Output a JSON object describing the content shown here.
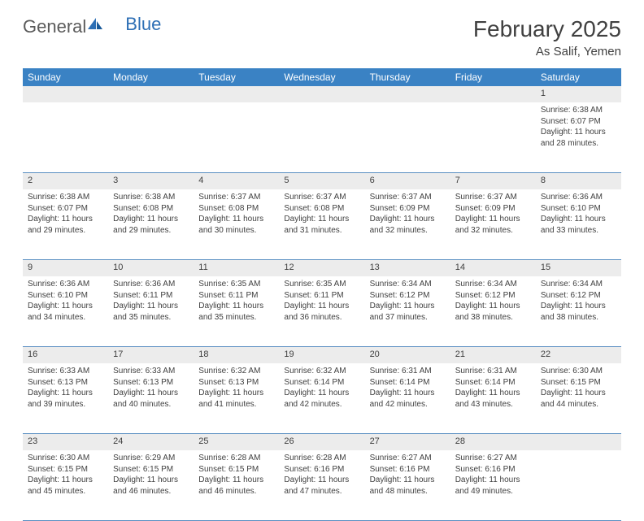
{
  "logo": {
    "text1": "General",
    "text2": "Blue"
  },
  "title": "February 2025",
  "location": "As Salif, Yemen",
  "weekdays": [
    "Sunday",
    "Monday",
    "Tuesday",
    "Wednesday",
    "Thursday",
    "Friday",
    "Saturday"
  ],
  "colors": {
    "header_bg": "#3a82c4",
    "header_text": "#ffffff",
    "daynum_bg": "#ececec",
    "border": "#5a8fc2",
    "text": "#404040",
    "logo_gray": "#5a5a5a",
    "logo_blue": "#2d6fb5"
  },
  "weeks": [
    {
      "nums": [
        "",
        "",
        "",
        "",
        "",
        "",
        "1"
      ],
      "cells": [
        null,
        null,
        null,
        null,
        null,
        null,
        {
          "sunrise": "Sunrise: 6:38 AM",
          "sunset": "Sunset: 6:07 PM",
          "daylight": "Daylight: 11 hours and 28 minutes."
        }
      ]
    },
    {
      "nums": [
        "2",
        "3",
        "4",
        "5",
        "6",
        "7",
        "8"
      ],
      "cells": [
        {
          "sunrise": "Sunrise: 6:38 AM",
          "sunset": "Sunset: 6:07 PM",
          "daylight": "Daylight: 11 hours and 29 minutes."
        },
        {
          "sunrise": "Sunrise: 6:38 AM",
          "sunset": "Sunset: 6:08 PM",
          "daylight": "Daylight: 11 hours and 29 minutes."
        },
        {
          "sunrise": "Sunrise: 6:37 AM",
          "sunset": "Sunset: 6:08 PM",
          "daylight": "Daylight: 11 hours and 30 minutes."
        },
        {
          "sunrise": "Sunrise: 6:37 AM",
          "sunset": "Sunset: 6:08 PM",
          "daylight": "Daylight: 11 hours and 31 minutes."
        },
        {
          "sunrise": "Sunrise: 6:37 AM",
          "sunset": "Sunset: 6:09 PM",
          "daylight": "Daylight: 11 hours and 32 minutes."
        },
        {
          "sunrise": "Sunrise: 6:37 AM",
          "sunset": "Sunset: 6:09 PM",
          "daylight": "Daylight: 11 hours and 32 minutes."
        },
        {
          "sunrise": "Sunrise: 6:36 AM",
          "sunset": "Sunset: 6:10 PM",
          "daylight": "Daylight: 11 hours and 33 minutes."
        }
      ]
    },
    {
      "nums": [
        "9",
        "10",
        "11",
        "12",
        "13",
        "14",
        "15"
      ],
      "cells": [
        {
          "sunrise": "Sunrise: 6:36 AM",
          "sunset": "Sunset: 6:10 PM",
          "daylight": "Daylight: 11 hours and 34 minutes."
        },
        {
          "sunrise": "Sunrise: 6:36 AM",
          "sunset": "Sunset: 6:11 PM",
          "daylight": "Daylight: 11 hours and 35 minutes."
        },
        {
          "sunrise": "Sunrise: 6:35 AM",
          "sunset": "Sunset: 6:11 PM",
          "daylight": "Daylight: 11 hours and 35 minutes."
        },
        {
          "sunrise": "Sunrise: 6:35 AM",
          "sunset": "Sunset: 6:11 PM",
          "daylight": "Daylight: 11 hours and 36 minutes."
        },
        {
          "sunrise": "Sunrise: 6:34 AM",
          "sunset": "Sunset: 6:12 PM",
          "daylight": "Daylight: 11 hours and 37 minutes."
        },
        {
          "sunrise": "Sunrise: 6:34 AM",
          "sunset": "Sunset: 6:12 PM",
          "daylight": "Daylight: 11 hours and 38 minutes."
        },
        {
          "sunrise": "Sunrise: 6:34 AM",
          "sunset": "Sunset: 6:12 PM",
          "daylight": "Daylight: 11 hours and 38 minutes."
        }
      ]
    },
    {
      "nums": [
        "16",
        "17",
        "18",
        "19",
        "20",
        "21",
        "22"
      ],
      "cells": [
        {
          "sunrise": "Sunrise: 6:33 AM",
          "sunset": "Sunset: 6:13 PM",
          "daylight": "Daylight: 11 hours and 39 minutes."
        },
        {
          "sunrise": "Sunrise: 6:33 AM",
          "sunset": "Sunset: 6:13 PM",
          "daylight": "Daylight: 11 hours and 40 minutes."
        },
        {
          "sunrise": "Sunrise: 6:32 AM",
          "sunset": "Sunset: 6:13 PM",
          "daylight": "Daylight: 11 hours and 41 minutes."
        },
        {
          "sunrise": "Sunrise: 6:32 AM",
          "sunset": "Sunset: 6:14 PM",
          "daylight": "Daylight: 11 hours and 42 minutes."
        },
        {
          "sunrise": "Sunrise: 6:31 AM",
          "sunset": "Sunset: 6:14 PM",
          "daylight": "Daylight: 11 hours and 42 minutes."
        },
        {
          "sunrise": "Sunrise: 6:31 AM",
          "sunset": "Sunset: 6:14 PM",
          "daylight": "Daylight: 11 hours and 43 minutes."
        },
        {
          "sunrise": "Sunrise: 6:30 AM",
          "sunset": "Sunset: 6:15 PM",
          "daylight": "Daylight: 11 hours and 44 minutes."
        }
      ]
    },
    {
      "nums": [
        "23",
        "24",
        "25",
        "26",
        "27",
        "28",
        ""
      ],
      "cells": [
        {
          "sunrise": "Sunrise: 6:30 AM",
          "sunset": "Sunset: 6:15 PM",
          "daylight": "Daylight: 11 hours and 45 minutes."
        },
        {
          "sunrise": "Sunrise: 6:29 AM",
          "sunset": "Sunset: 6:15 PM",
          "daylight": "Daylight: 11 hours and 46 minutes."
        },
        {
          "sunrise": "Sunrise: 6:28 AM",
          "sunset": "Sunset: 6:15 PM",
          "daylight": "Daylight: 11 hours and 46 minutes."
        },
        {
          "sunrise": "Sunrise: 6:28 AM",
          "sunset": "Sunset: 6:16 PM",
          "daylight": "Daylight: 11 hours and 47 minutes."
        },
        {
          "sunrise": "Sunrise: 6:27 AM",
          "sunset": "Sunset: 6:16 PM",
          "daylight": "Daylight: 11 hours and 48 minutes."
        },
        {
          "sunrise": "Sunrise: 6:27 AM",
          "sunset": "Sunset: 6:16 PM",
          "daylight": "Daylight: 11 hours and 49 minutes."
        },
        null
      ]
    }
  ]
}
